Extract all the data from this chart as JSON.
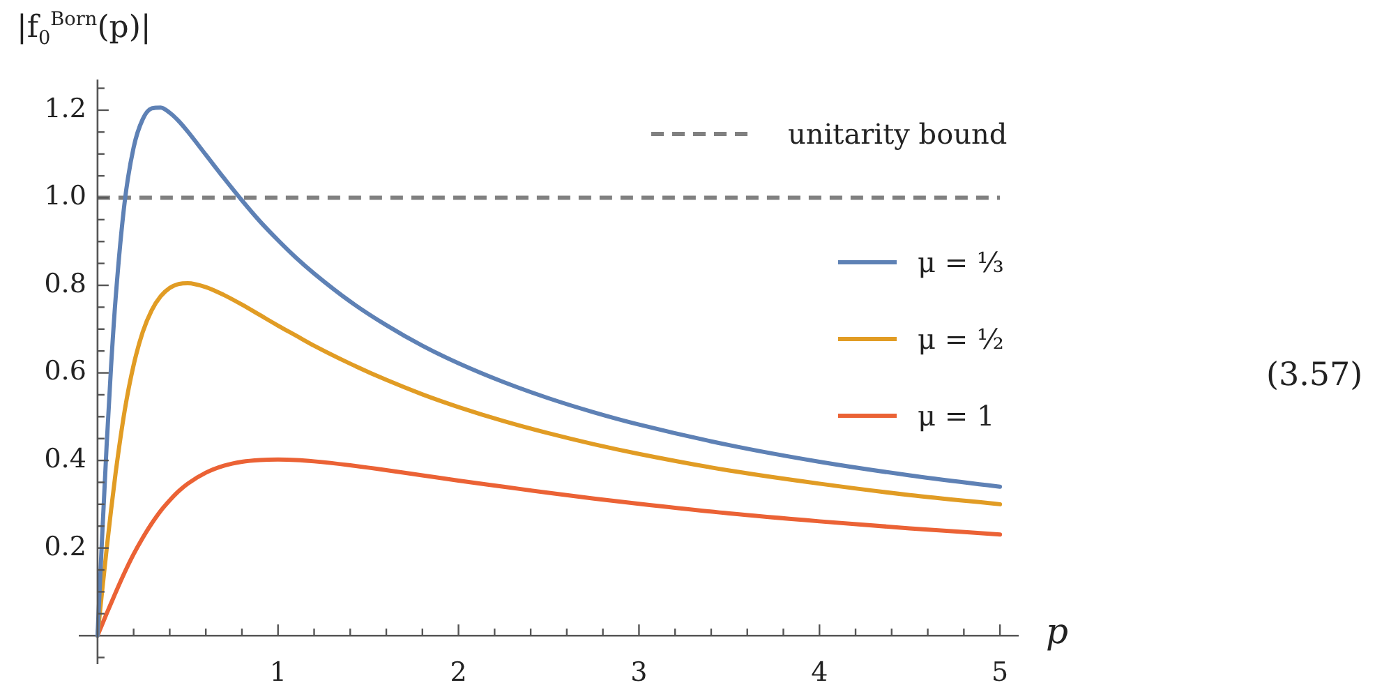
{
  "chart_data": {
    "type": "line",
    "xlabel": "p",
    "ylabel": "|f$_{0}$$^{Born}$(p)|",
    "annotations": [
      "(3.57)"
    ],
    "x": [
      0,
      0.025,
      0.05,
      0.075,
      0.1,
      0.15,
      0.2,
      0.25,
      0.3,
      0.35,
      0.4,
      0.45,
      0.5,
      0.6,
      0.7,
      0.8,
      0.9,
      1,
      1.1,
      1.2,
      1.4,
      1.6,
      1.8,
      2,
      2.25,
      2.5,
      2.75,
      3,
      3.5,
      4,
      4.5,
      5
    ],
    "series": [
      {
        "name": "μ = ⅓",
        "color": "#5e81b5",
        "values": [
          0,
          0.222,
          0.431,
          0.615,
          0.769,
          0.989,
          1.115,
          1.179,
          1.204,
          1.206,
          1.194,
          1.175,
          1.151,
          1.098,
          1.045,
          0.994,
          0.946,
          0.903,
          0.863,
          0.827,
          0.763,
          0.709,
          0.662,
          0.622,
          0.579,
          0.542,
          0.51,
          0.482,
          0.435,
          0.397,
          0.366,
          0.34
        ]
      },
      {
        "name": "μ = ½",
        "color": "#e19c24",
        "values": [
          0,
          0.1,
          0.196,
          0.287,
          0.371,
          0.513,
          0.618,
          0.693,
          0.743,
          0.775,
          0.794,
          0.803,
          0.805,
          0.796,
          0.778,
          0.756,
          0.732,
          0.708,
          0.685,
          0.662,
          0.621,
          0.584,
          0.551,
          0.522,
          0.49,
          0.462,
          0.437,
          0.415,
          0.377,
          0.347,
          0.321,
          0.3
        ]
      },
      {
        "name": "μ = 1",
        "color": "#eb6235",
        "values": [
          0,
          0.025,
          0.05,
          0.074,
          0.098,
          0.144,
          0.186,
          0.223,
          0.256,
          0.285,
          0.309,
          0.33,
          0.347,
          0.372,
          0.388,
          0.397,
          0.401,
          0.402,
          0.401,
          0.398,
          0.389,
          0.378,
          0.366,
          0.354,
          0.34,
          0.326,
          0.313,
          0.301,
          0.279,
          0.261,
          0.245,
          0.231
        ]
      }
    ],
    "xlim": [
      -0.1,
      5.1
    ],
    "ylim": [
      -0.065,
      1.27
    ],
    "xticks": [
      {
        "value": 0.2,
        "label": null
      },
      {
        "value": 0.4,
        "label": null
      },
      {
        "value": 0.6,
        "label": null
      },
      {
        "value": 0.8,
        "label": null
      },
      1,
      {
        "value": 1.2,
        "label": null
      },
      {
        "value": 1.4,
        "label": null
      },
      {
        "value": 1.6,
        "label": null
      },
      {
        "value": 1.8,
        "label": null
      },
      2,
      {
        "value": 2.2,
        "label": null
      },
      {
        "value": 2.4,
        "label": null
      },
      {
        "value": 2.6,
        "label": null
      },
      {
        "value": 2.8,
        "label": null
      },
      3,
      {
        "value": 3.2,
        "label": null
      },
      {
        "value": 3.4,
        "label": null
      },
      {
        "value": 3.6,
        "label": null
      },
      {
        "value": 3.8,
        "label": null
      },
      4,
      {
        "value": 4.2,
        "label": null
      },
      {
        "value": 4.4,
        "label": null
      },
      {
        "value": 4.6,
        "label": null
      },
      {
        "value": 4.8,
        "label": null
      },
      5
    ],
    "yticks": [
      {
        "value": -0.05,
        "label": null
      },
      {
        "value": 0.05,
        "label": null
      },
      {
        "value": 0.1,
        "label": null
      },
      {
        "value": 0.15,
        "label": null
      },
      0.2,
      {
        "value": 0.25,
        "label": null
      },
      {
        "value": 0.3,
        "label": null
      },
      {
        "value": 0.35,
        "label": null
      },
      0.4,
      {
        "value": 0.45,
        "label": null
      },
      {
        "value": 0.5,
        "label": null
      },
      {
        "value": 0.55,
        "label": null
      },
      0.6,
      {
        "value": 0.65,
        "label": null
      },
      {
        "value": 0.7,
        "label": null
      },
      {
        "value": 0.75,
        "label": null
      },
      0.8,
      {
        "value": 0.85,
        "label": null
      },
      {
        "value": 0.9,
        "label": null
      },
      {
        "value": 0.95,
        "label": null
      },
      {
        "value": 1,
        "label": "1.0"
      },
      {
        "value": 1.05,
        "label": null
      },
      {
        "value": 1.1,
        "label": null
      },
      {
        "value": 1.15,
        "label": null
      },
      1.2,
      {
        "value": 1.25,
        "label": null
      }
    ],
    "ref_lines": [
      {
        "axis": "y",
        "value": 1,
        "label": "unitarity bound",
        "color": "#808080",
        "line_style": "dashed"
      }
    ],
    "legend": "right",
    "marker": "none",
    "line_style": "solid"
  }
}
